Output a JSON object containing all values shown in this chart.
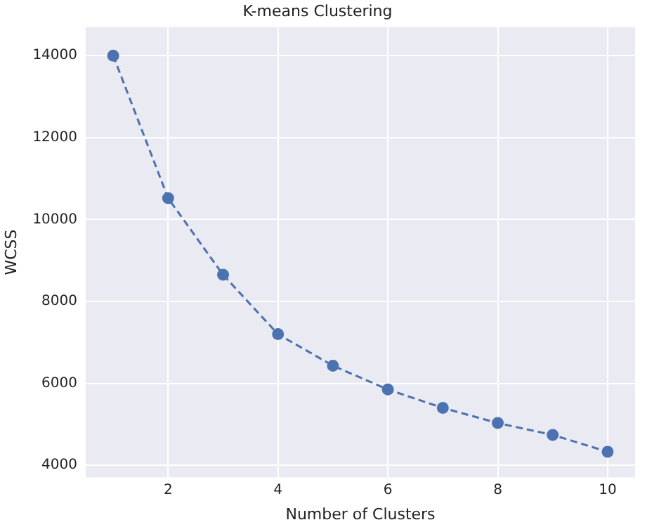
{
  "chart_data": {
    "type": "line",
    "title": "K-means Clustering",
    "xlabel": "Number of Clusters",
    "ylabel": "WCSS",
    "x": [
      1,
      2,
      3,
      4,
      5,
      6,
      7,
      8,
      9,
      10
    ],
    "series": [
      {
        "color": "#4c72b0",
        "values": [
          14000,
          10520,
          8650,
          7200,
          6430,
          5850,
          5400,
          5030,
          4740,
          4330
        ]
      }
    ],
    "xlim": [
      0.5,
      10.5
    ],
    "xticks": [
      2,
      4,
      6,
      8,
      10
    ],
    "ylim": [
      3700,
      14700
    ],
    "yticks": [
      4000,
      6000,
      8000,
      10000,
      12000,
      14000
    ],
    "grid": true,
    "legend": false,
    "marker": "circle",
    "line_style": "dashed"
  }
}
